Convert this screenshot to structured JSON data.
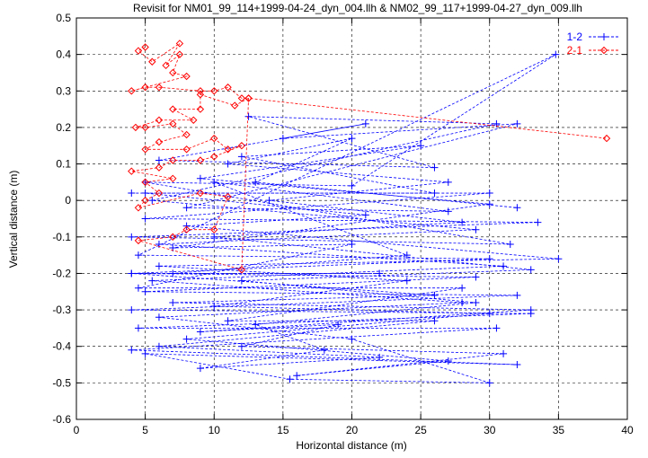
{
  "chart_data": {
    "type": "line",
    "title": "Revisit for NM01_99_114+1999-04-24_dyn_004.llh & NM02_99_117+1999-04-27_dyn_009.llh",
    "xlabel": "Horizontal distance (m)",
    "ylabel": "Vertical distance (m)",
    "xlim": [
      0,
      40
    ],
    "ylim": [
      -0.6,
      0.5
    ],
    "xticks": [
      0,
      5,
      10,
      15,
      20,
      25,
      30,
      35,
      40
    ],
    "yticks": [
      -0.6,
      -0.5,
      -0.4,
      -0.3,
      -0.2,
      -0.1,
      0,
      0.1,
      0.2,
      0.3,
      0.4,
      0.5
    ],
    "grid": true,
    "legend_position": "top-right",
    "series": [
      {
        "name": "1-2",
        "color": "#0000ff",
        "marker": "plus",
        "points": [
          [
            4,
            0.02
          ],
          [
            30,
            0.02
          ],
          [
            5,
            -0.05
          ],
          [
            33.5,
            -0.06
          ],
          [
            4,
            -0.1
          ],
          [
            31.5,
            -0.12
          ],
          [
            5,
            0.05
          ],
          [
            20,
            0.04
          ],
          [
            34.8,
            0.4
          ],
          [
            4.5,
            -0.15
          ],
          [
            30,
            -0.16
          ],
          [
            4,
            -0.2
          ],
          [
            29,
            -0.21
          ],
          [
            5,
            -0.25
          ],
          [
            32,
            -0.26
          ],
          [
            4,
            -0.3
          ],
          [
            33,
            -0.31
          ],
          [
            4.5,
            -0.35
          ],
          [
            30.5,
            -0.35
          ],
          [
            4,
            -0.41
          ],
          [
            32,
            -0.45
          ],
          [
            5,
            -0.42
          ],
          [
            15.5,
            -0.49
          ],
          [
            30,
            -0.5
          ],
          [
            20,
            -0.38
          ],
          [
            6,
            -0.32
          ],
          [
            28,
            -0.28
          ],
          [
            5.5,
            -0.22
          ],
          [
            31,
            -0.18
          ],
          [
            6,
            -0.12
          ],
          [
            29,
            -0.08
          ],
          [
            5.5,
            0
          ],
          [
            30.5,
            0.21
          ],
          [
            12.5,
            0.23
          ],
          [
            26,
            0.09
          ],
          [
            6,
            0.11
          ],
          [
            21,
            0.21
          ],
          [
            15,
            0.17
          ],
          [
            32,
            0.21
          ],
          [
            8,
            -0.02
          ],
          [
            27,
            -0.03
          ],
          [
            10,
            0.05
          ],
          [
            24,
            -0.15
          ],
          [
            7,
            -0.2
          ],
          [
            22,
            -0.2
          ],
          [
            4,
            -0.2
          ],
          [
            26,
            -0.26
          ],
          [
            7,
            -0.28
          ],
          [
            33,
            -0.3
          ],
          [
            9,
            -0.36
          ],
          [
            19,
            -0.34
          ],
          [
            12,
            -0.4
          ],
          [
            31,
            -0.42
          ],
          [
            16,
            -0.48
          ],
          [
            27,
            -0.44
          ],
          [
            8,
            -0.38
          ],
          [
            30,
            -0.31
          ],
          [
            10,
            -0.29
          ],
          [
            24,
            -0.22
          ],
          [
            6,
            -0.18
          ],
          [
            35,
            -0.16
          ],
          [
            8,
            -0.07
          ],
          [
            21,
            -0.04
          ],
          [
            5,
            0.02
          ],
          [
            26,
            0.02
          ],
          [
            12,
            0.12
          ],
          [
            25,
            0.15
          ],
          [
            9,
            0.06
          ],
          [
            30,
            -0.01
          ],
          [
            7,
            -0.13
          ],
          [
            20,
            -0.12
          ],
          [
            4.5,
            -0.24
          ],
          [
            28,
            -0.24
          ],
          [
            11,
            -0.33
          ],
          [
            26,
            -0.33
          ],
          [
            6,
            -0.4
          ],
          [
            22,
            -0.43
          ],
          [
            9,
            -0.46
          ],
          [
            18,
            -0.41
          ],
          [
            13,
            -0.34
          ],
          [
            29,
            -0.28
          ],
          [
            12,
            -0.22
          ],
          [
            33,
            -0.19
          ],
          [
            10,
            -0.1
          ],
          [
            28,
            -0.06
          ],
          [
            14,
            0
          ],
          [
            27,
            0.05
          ],
          [
            11,
            0.1
          ],
          [
            20,
            0.17
          ],
          [
            13,
            0.05
          ],
          [
            32,
            -0.02
          ]
        ]
      },
      {
        "name": "2-1",
        "color": "#ff0000",
        "marker": "diamond",
        "points": [
          [
            5,
            0.42
          ],
          [
            4.5,
            0.41
          ],
          [
            5.5,
            0.38
          ],
          [
            7.5,
            0.43
          ],
          [
            6.5,
            0.37
          ],
          [
            7.5,
            0.4
          ],
          [
            7,
            0.35
          ],
          [
            8,
            0.34
          ],
          [
            4,
            0.3
          ],
          [
            5,
            0.31
          ],
          [
            6,
            0.31
          ],
          [
            9,
            0.3
          ],
          [
            10,
            0.3
          ],
          [
            11,
            0.31
          ],
          [
            12,
            0.28
          ],
          [
            12.5,
            0.28
          ],
          [
            11.5,
            0.26
          ],
          [
            9,
            0.29
          ],
          [
            9,
            0.25
          ],
          [
            7,
            0.25
          ],
          [
            8.5,
            0.22
          ],
          [
            6,
            0.22
          ],
          [
            4.3,
            0.2
          ],
          [
            5,
            0.2
          ],
          [
            7,
            0.21
          ],
          [
            8,
            0.18
          ],
          [
            6,
            0.16
          ],
          [
            5,
            0.14
          ],
          [
            8,
            0.14
          ],
          [
            10,
            0.17
          ],
          [
            11,
            0.14
          ],
          [
            12,
            0.15
          ],
          [
            10,
            0.12
          ],
          [
            9,
            0.11
          ],
          [
            7,
            0.11
          ],
          [
            6,
            0.09
          ],
          [
            4,
            0.08
          ],
          [
            7,
            0.06
          ],
          [
            5,
            0.05
          ],
          [
            6,
            0.02
          ],
          [
            5,
            0
          ],
          [
            4.5,
            -0.02
          ],
          [
            9,
            0.02
          ],
          [
            11,
            0.01
          ],
          [
            10,
            -0.08
          ],
          [
            8,
            -0.08
          ],
          [
            7,
            -0.1
          ],
          [
            4.5,
            -0.11
          ],
          [
            12,
            -0.19
          ],
          [
            12.5,
            0.28
          ],
          [
            38.5,
            0.17
          ]
        ]
      }
    ]
  }
}
